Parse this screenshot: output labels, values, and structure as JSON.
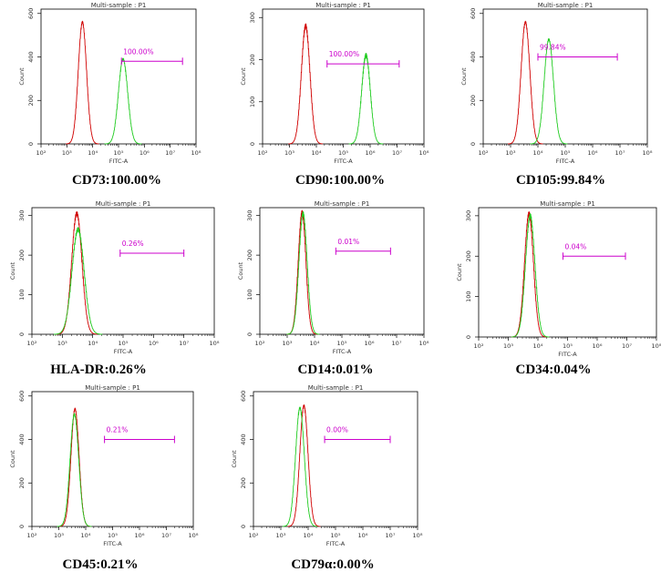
{
  "colors": {
    "isotype": "#d00000",
    "stained": "#22cc22",
    "gate": "#cc00cc",
    "frame": "#000000"
  },
  "panels": [
    {
      "title": "Multi-sample : P1",
      "xlabel": "FITC-A",
      "ylabel": "Count",
      "gate_label": "100.00%",
      "caption": "CD73:100.00%"
    },
    {
      "title": "Multi-sample : P1",
      "xlabel": "FITC-A",
      "ylabel": "Count",
      "gate_label": "100.00%",
      "caption": "CD90:100.00%"
    },
    {
      "title": "Multi-sample : P1",
      "xlabel": "FITC-A",
      "ylabel": "Count",
      "gate_label": "99.84%",
      "caption": "CD105:99.84%"
    },
    {
      "title": "Multi-sample : P1",
      "xlabel": "FITC-A",
      "ylabel": "Count",
      "gate_label": "0.26%",
      "caption": "HLA-DR:0.26%"
    },
    {
      "title": "Multi-sample : P1",
      "xlabel": "FITC-A",
      "ylabel": "Count",
      "gate_label": "0.01%",
      "caption": "CD14:0.01%"
    },
    {
      "title": "Multi-sample : P1",
      "xlabel": "FITC-A",
      "ylabel": "Count",
      "gate_label": "0.04%",
      "caption": "CD34:0.04%"
    },
    {
      "title": "Multi-sample : P1",
      "xlabel": "FITC-A",
      "ylabel": "Count",
      "gate_label": "0.21%",
      "caption": "CD45:0.21%"
    },
    {
      "title": "Multi-sample : P1",
      "xlabel": "FITC-A",
      "ylabel": "Count",
      "gate_label": "0.00%",
      "caption": "CD79α:0.00%"
    }
  ],
  "chart_data": [
    {
      "type": "area",
      "title": "Multi-sample : P1",
      "xlabel": "FITC-A",
      "ylabel": "Count",
      "x_scale": "log",
      "xlim": [
        100,
        100000000
      ],
      "ylim": [
        0,
        620
      ],
      "yticks": [
        0,
        200,
        400,
        600
      ],
      "series": [
        {
          "peak_x": 4000,
          "peak_y": 560,
          "width_decades": 0.16
        },
        {
          "peak_x": 150000,
          "peak_y": 390,
          "width_decades": 0.18
        }
      ],
      "gate": {
        "x_start": 130000,
        "x_end": 30000000,
        "y": 380,
        "label": "100.00%"
      }
    },
    {
      "type": "area",
      "title": "Multi-sample : P1",
      "xlabel": "FITC-A",
      "ylabel": "Count",
      "x_scale": "log",
      "xlim": [
        100,
        100000000
      ],
      "ylim": [
        0,
        320
      ],
      "yticks": [
        0,
        100,
        200,
        300
      ],
      "series": [
        {
          "peak_x": 4000,
          "peak_y": 280,
          "width_decades": 0.16
        },
        {
          "peak_x": 700000,
          "peak_y": 210,
          "width_decades": 0.16
        }
      ],
      "gate": {
        "x_start": 25000,
        "x_end": 12000000,
        "y": 190,
        "label": "100.00%"
      }
    },
    {
      "type": "area",
      "title": "Multi-sample : P1",
      "xlabel": "FITC-A",
      "ylabel": "Count",
      "x_scale": "log",
      "xlim": [
        100,
        100000000
      ],
      "ylim": [
        0,
        620
      ],
      "yticks": [
        0,
        200,
        400,
        600
      ],
      "series": [
        {
          "peak_x": 3500,
          "peak_y": 560,
          "width_decades": 0.16
        },
        {
          "peak_x": 25000,
          "peak_y": 480,
          "width_decades": 0.17
        }
      ],
      "gate": {
        "x_start": 10000,
        "x_end": 8000000,
        "y": 400,
        "label": "99.84%"
      }
    },
    {
      "type": "area",
      "title": "Multi-sample : P1",
      "xlabel": "FITC-A",
      "ylabel": "Count",
      "x_scale": "log",
      "xlim": [
        100,
        100000000
      ],
      "ylim": [
        0,
        320
      ],
      "yticks": [
        0,
        100,
        200,
        300
      ],
      "series": [
        {
          "peak_x": 3000,
          "peak_y": 305,
          "width_decades": 0.17
        },
        {
          "peak_x": 3300,
          "peak_y": 265,
          "width_decades": 0.2
        }
      ],
      "gate": {
        "x_start": 80000,
        "x_end": 10000000,
        "y": 205,
        "label": "0.26%"
      }
    },
    {
      "type": "area",
      "title": "Multi-sample : P1",
      "xlabel": "FITC-A",
      "ylabel": "Count",
      "x_scale": "log",
      "xlim": [
        100,
        100000000
      ],
      "ylim": [
        0,
        320
      ],
      "yticks": [
        0,
        100,
        200,
        300
      ],
      "series": [
        {
          "peak_x": 3500,
          "peak_y": 308,
          "width_decades": 0.14
        },
        {
          "peak_x": 3800,
          "peak_y": 305,
          "width_decades": 0.15
        }
      ],
      "gate": {
        "x_start": 60000,
        "x_end": 6000000,
        "y": 210,
        "label": "0.01%"
      }
    },
    {
      "type": "area",
      "title": "Multi-sample : P1",
      "xlabel": "FITC-A",
      "ylabel": "Count",
      "x_scale": "log",
      "xlim": [
        100,
        100000000
      ],
      "ylim": [
        0,
        320
      ],
      "yticks": [
        0,
        100,
        200,
        300
      ],
      "series": [
        {
          "peak_x": 5000,
          "peak_y": 305,
          "width_decades": 0.15
        },
        {
          "peak_x": 5500,
          "peak_y": 300,
          "width_decades": 0.16
        }
      ],
      "gate": {
        "x_start": 70000,
        "x_end": 9000000,
        "y": 200,
        "label": "0.04%"
      }
    },
    {
      "type": "area",
      "title": "Multi-sample : P1",
      "xlabel": "FITC-A",
      "ylabel": "Count",
      "x_scale": "log",
      "xlim": [
        100,
        100000000
      ],
      "ylim": [
        0,
        620
      ],
      "yticks": [
        0,
        200,
        400,
        600
      ],
      "series": [
        {
          "peak_x": 4000,
          "peak_y": 540,
          "width_decades": 0.15
        },
        {
          "peak_x": 3800,
          "peak_y": 515,
          "width_decades": 0.16
        }
      ],
      "gate": {
        "x_start": 50000,
        "x_end": 20000000,
        "y": 400,
        "label": "0.21%"
      }
    },
    {
      "type": "area",
      "title": "Multi-sample : P1",
      "xlabel": "FITC-A",
      "ylabel": "Count",
      "x_scale": "log",
      "xlim": [
        100,
        100000000
      ],
      "ylim": [
        0,
        620
      ],
      "yticks": [
        0,
        200,
        400,
        600
      ],
      "series": [
        {
          "peak_x": 7000,
          "peak_y": 555,
          "width_decades": 0.15
        },
        {
          "peak_x": 5000,
          "peak_y": 545,
          "width_decades": 0.16
        }
      ],
      "gate": {
        "x_start": 40000,
        "x_end": 10000000,
        "y": 400,
        "label": "0.00%"
      }
    }
  ]
}
